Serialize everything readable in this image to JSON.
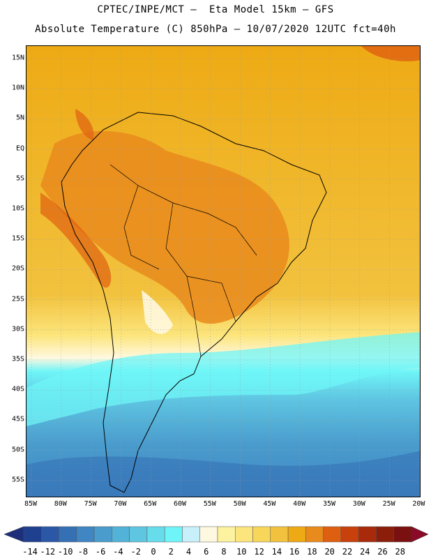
{
  "header": {
    "line1": "CPTEC/INPE/MCT –  Eta Model 15km – GFS",
    "line2": "Absolute Temperature (C) 850hPa – 10/07/2020 12UTC fct=40h"
  },
  "map": {
    "lat_ticks": [
      "15N",
      "10N",
      "5N",
      "EQ",
      "5S",
      "10S",
      "15S",
      "20S",
      "25S",
      "30S",
      "35S",
      "40S",
      "45S",
      "50S",
      "55S"
    ],
    "lon_ticks": [
      "85W",
      "80W",
      "75W",
      "70W",
      "65W",
      "60W",
      "55W",
      "50W",
      "45W",
      "40W",
      "35W",
      "30W",
      "25W",
      "20W"
    ],
    "grid": "dotted",
    "region": "South America"
  },
  "colorbar": {
    "labels": [
      "-14",
      "-12",
      "-10",
      "-8",
      "-6",
      "-4",
      "-2",
      "0",
      "2",
      "4",
      "6",
      "8",
      "10",
      "12",
      "14",
      "16",
      "18",
      "20",
      "22",
      "24",
      "26",
      "28"
    ],
    "colors": [
      "#1f3f8f",
      "#2a58a6",
      "#3570b5",
      "#3f86c2",
      "#4a9ccd",
      "#52b2d8",
      "#5fc6e2",
      "#67dceb",
      "#6ff5f7",
      "#c8f0fa",
      "#fff8e0",
      "#fdf2a0",
      "#fce57c",
      "#f8d65a",
      "#f2c23e",
      "#eeaa14",
      "#e98a1c",
      "#df5f10",
      "#c8400c",
      "#a82a0a",
      "#8a1e0a",
      "#7a1010"
    ],
    "low_arrow_color": "#1d2f7a",
    "high_arrow_color": "#8a0a28"
  }
}
